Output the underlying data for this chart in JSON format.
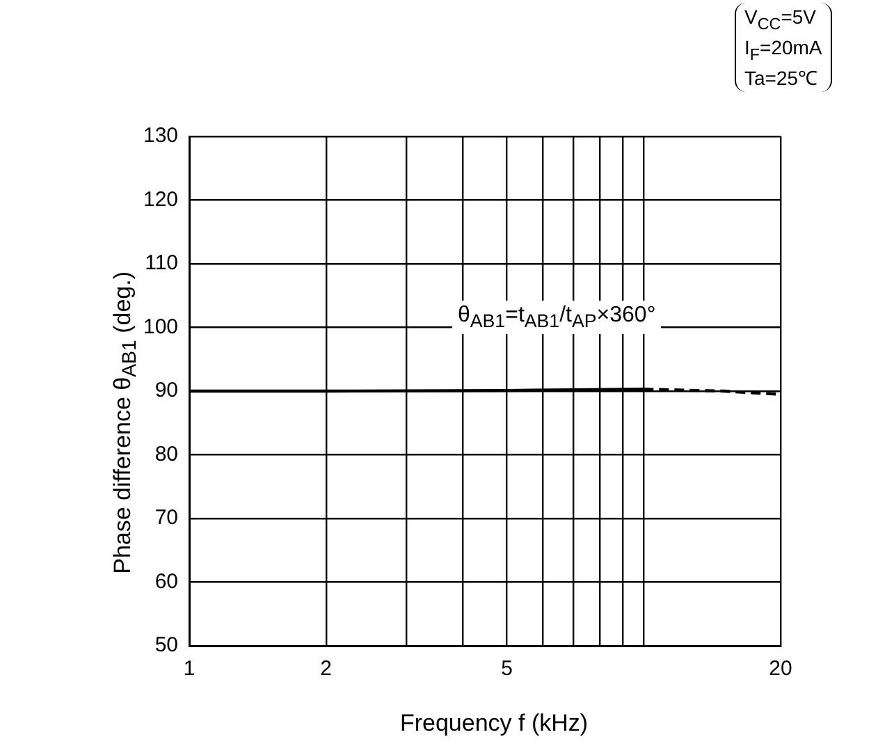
{
  "chart_data": {
    "type": "line",
    "xlabel": "Frequency f (kHz)",
    "ylabel": "Phase difference θ$_{AB1}$ (deg.)",
    "annotations": [
      "θ$_{AB1}$=t$_{AB1}$/t$_{AP}$×360°",
      "V$_{CC}$=5V",
      "I$_{F}$=20mA",
      "Ta=25℃"
    ],
    "series": [
      {
        "color": "#000000",
        "line_style": "solid",
        "x": [
          1,
          2,
          5,
          7,
          10
        ],
        "values": [
          90,
          90,
          90.1,
          90.2,
          90.3
        ]
      },
      {
        "color": "#000000",
        "line_style": "dashed",
        "x": [
          10,
          15,
          20
        ],
        "values": [
          90.3,
          90,
          89.5
        ]
      }
    ],
    "log": "x",
    "xlim": [
      1,
      20
    ],
    "xticks": [
      1,
      2,
      {
        "value": 3,
        "label": null
      },
      {
        "value": 4,
        "label": null
      },
      5,
      {
        "value": 6,
        "label": null
      },
      {
        "value": 7,
        "label": null
      },
      {
        "value": 8,
        "label": null
      },
      {
        "value": 9,
        "label": null
      },
      {
        "value": 10,
        "label": null
      },
      20
    ],
    "ylim": [
      50,
      130
    ],
    "yticks": [
      50,
      60,
      70,
      80,
      90,
      100,
      110,
      120,
      130
    ],
    "grid": true,
    "legend": false
  }
}
